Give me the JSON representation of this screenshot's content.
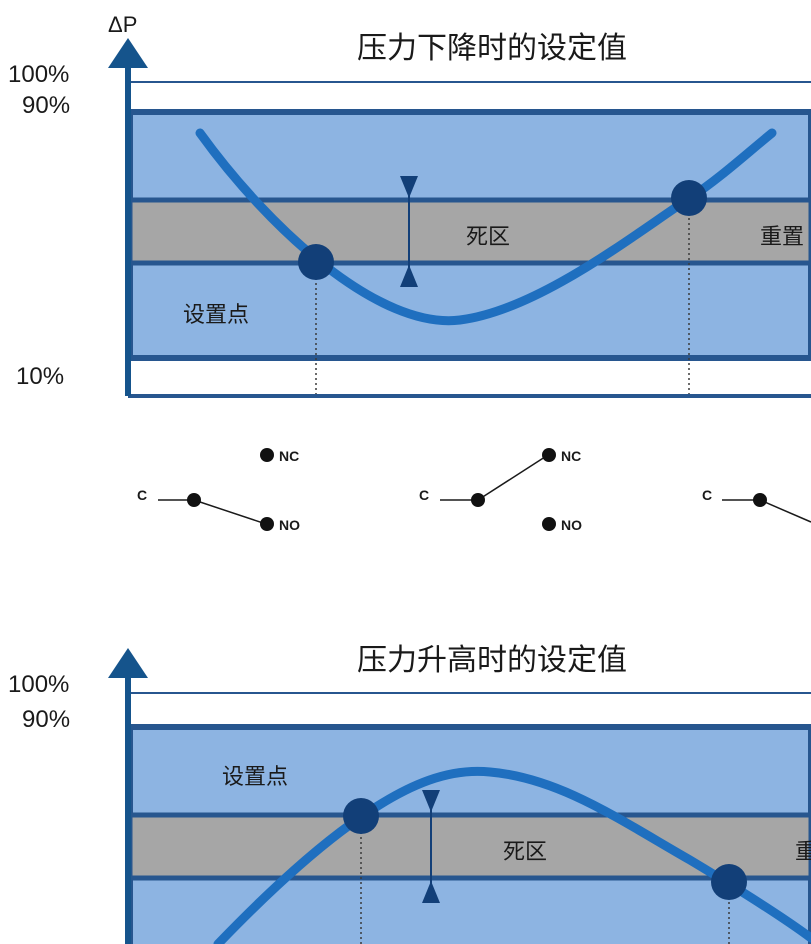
{
  "colors": {
    "axis": "#15548c",
    "band_blue": "#8db4e2",
    "band_border": "#27568f",
    "deadband_grey": "#a6a6a6",
    "curve": "#1f6fbf",
    "point": "#123f78",
    "text": "#1a1a1a"
  },
  "diagram1": {
    "axis_symbol": "ΔP",
    "title": "压力下降时的设定值",
    "label_100": "100%",
    "label_90": "90%",
    "label_10": "10%",
    "deadband_label": "死区",
    "setpoint_label": "设置点",
    "reset_label": "重置",
    "curve_shape": "valley"
  },
  "switches": {
    "s1": {
      "c": "C",
      "nc": "NC",
      "no": "NO",
      "state": "C-NO"
    },
    "s2": {
      "c": "C",
      "nc": "NC",
      "no": "NO",
      "state": "C-NC"
    },
    "s3": {
      "c": "C",
      "state": "C-NO"
    }
  },
  "diagram2": {
    "title": "压力升高时的设定值",
    "label_100": "100%",
    "label_90": "90%",
    "setpoint_label": "设置点",
    "deadband_label": "死区",
    "reset_label": "重",
    "curve_shape": "hill"
  }
}
